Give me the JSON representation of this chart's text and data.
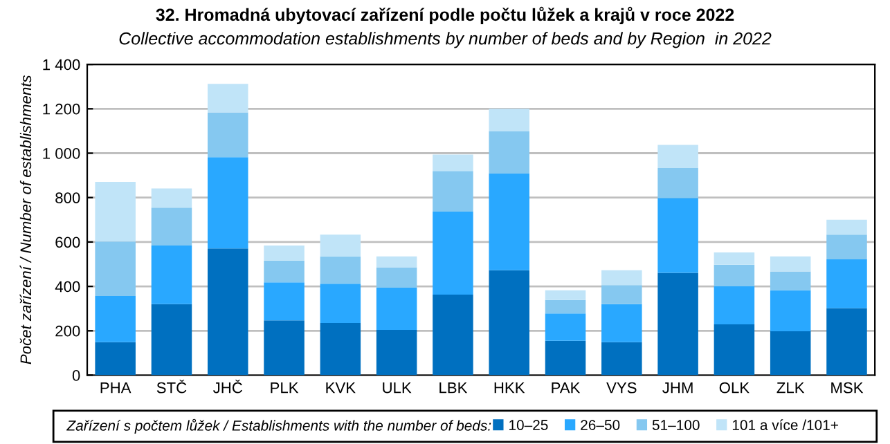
{
  "chart_data": {
    "type": "bar",
    "stacked": true,
    "title": "32. Hromadná ubytovací zařízení podle počtu lůžek a krajů v roce 2022",
    "subtitle": "Collective accommodation establishments by number of beds and by Region  in 2022",
    "ylabel": "Počet zařízení / Number of establishments",
    "legend_title": "Zařízení s počtem lůžek / Establishments with the number of beds:",
    "categories": [
      "PHA",
      "STČ",
      "JHČ",
      "PLK",
      "KVK",
      "ULK",
      "LBK",
      "HKK",
      "PAK",
      "VYS",
      "JHM",
      "OLK",
      "ZLK",
      "MSK"
    ],
    "series": [
      {
        "name": "10–25",
        "color": "#0070c0",
        "values": [
          149,
          320,
          571,
          247,
          235,
          204,
          363,
          473,
          155,
          149,
          461,
          229,
          198,
          302
        ]
      },
      {
        "name": "26–50",
        "color": "#29a8ff",
        "values": [
          208,
          264,
          411,
          171,
          177,
          190,
          374,
          435,
          123,
          171,
          337,
          171,
          184,
          220
        ]
      },
      {
        "name": "51–100",
        "color": "#85c8f0",
        "values": [
          245,
          171,
          202,
          98,
          123,
          92,
          183,
          190,
          61,
          86,
          135,
          98,
          85,
          111
        ]
      },
      {
        "name": "101 a více /101+",
        "color": "#c0e4f8",
        "values": [
          269,
          86,
          128,
          68,
          98,
          49,
          74,
          102,
          43,
          67,
          104,
          55,
          68,
          67
        ]
      }
    ],
    "ylim": [
      0,
      1400
    ],
    "yticks": [
      0,
      {
        "value": 200,
        "label": "200"
      },
      400,
      600,
      800,
      {
        "value": 1000,
        "label": "1 000"
      },
      {
        "value": 1200,
        "label": "1 200"
      },
      {
        "value": 1400,
        "label": "1 400"
      }
    ],
    "grid": "y",
    "legend": "bottom"
  }
}
